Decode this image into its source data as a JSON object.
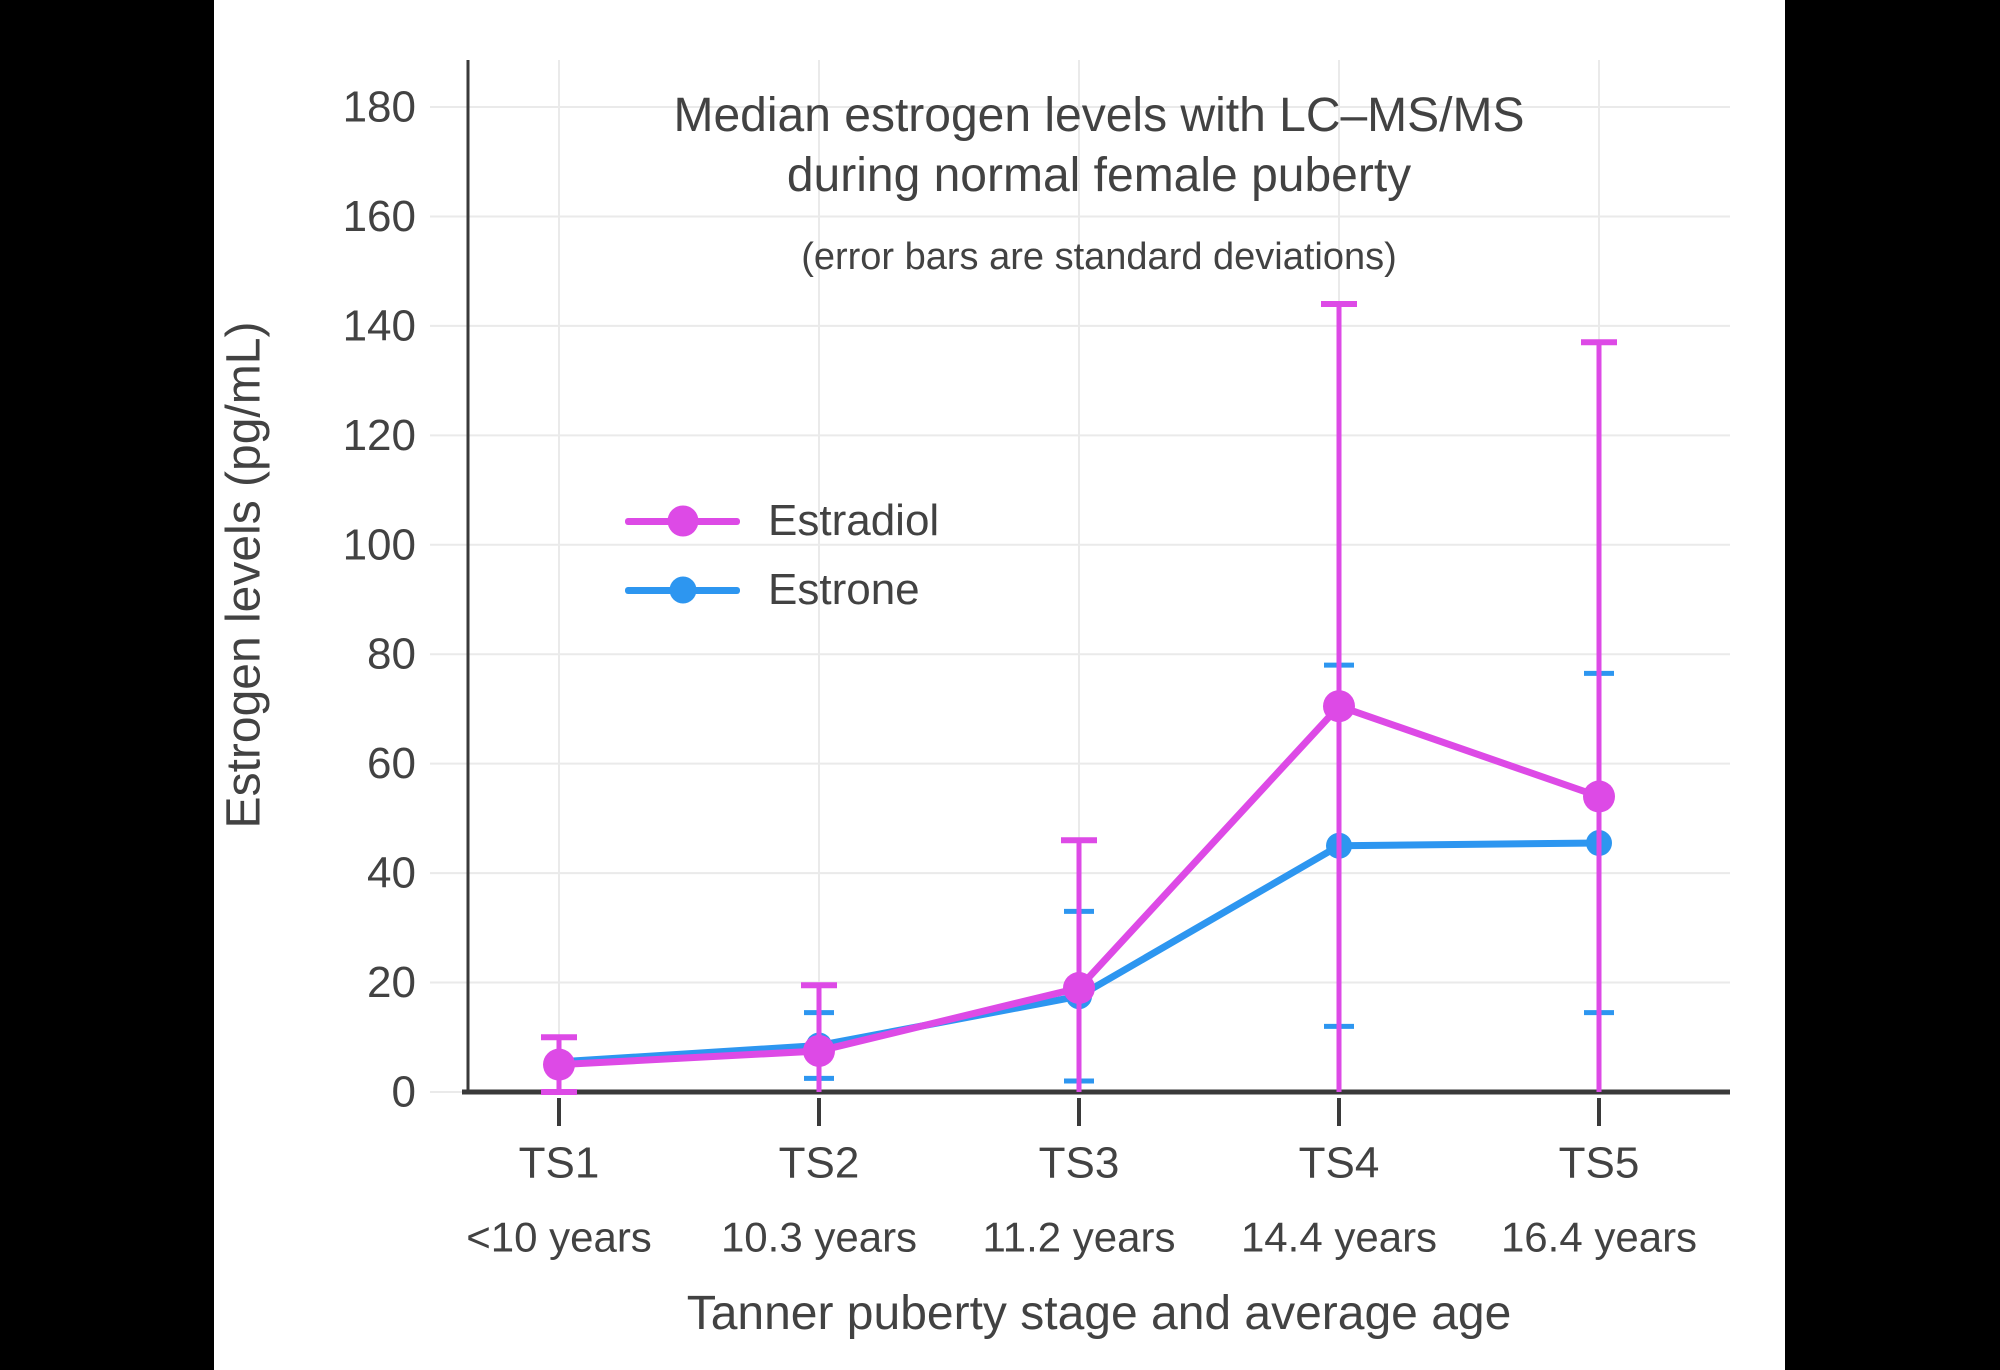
{
  "chart_data": {
    "type": "line",
    "title": "Median estrogen levels with LC–MS/MS during normal female puberty",
    "title_lines": [
      "Median estrogen levels with LC–MS/MS",
      "during normal female puberty"
    ],
    "subtitle": "(error bars are standard deviations)",
    "xlabel": "Tanner puberty stage and average age",
    "ylabel": "Estrogen levels (pg/mL)",
    "categories": [
      "TS1",
      "TS2",
      "TS3",
      "TS4",
      "TS5"
    ],
    "category_sublabels": [
      "<10 years",
      "10.3 years",
      "11.2 years",
      "14.4 years",
      "16.4 years"
    ],
    "ylim": [
      0,
      189
    ],
    "yticks": [
      0,
      20,
      40,
      60,
      80,
      100,
      120,
      140,
      160,
      180
    ],
    "grid": true,
    "legend_position": "inside-upper-left",
    "error_bar_meaning": "standard deviations",
    "series": [
      {
        "name": "Estradiol",
        "color": "#DD4AE6",
        "values": [
          5,
          7.5,
          19,
          70.5,
          54
        ],
        "sd": [
          5,
          12,
          27,
          73.5,
          83
        ]
      },
      {
        "name": "Estrone",
        "color": "#2D96F0",
        "values": [
          5.5,
          8.5,
          17.5,
          45,
          45.5
        ],
        "sd": [
          null,
          6,
          15.5,
          33,
          31
        ]
      }
    ]
  }
}
